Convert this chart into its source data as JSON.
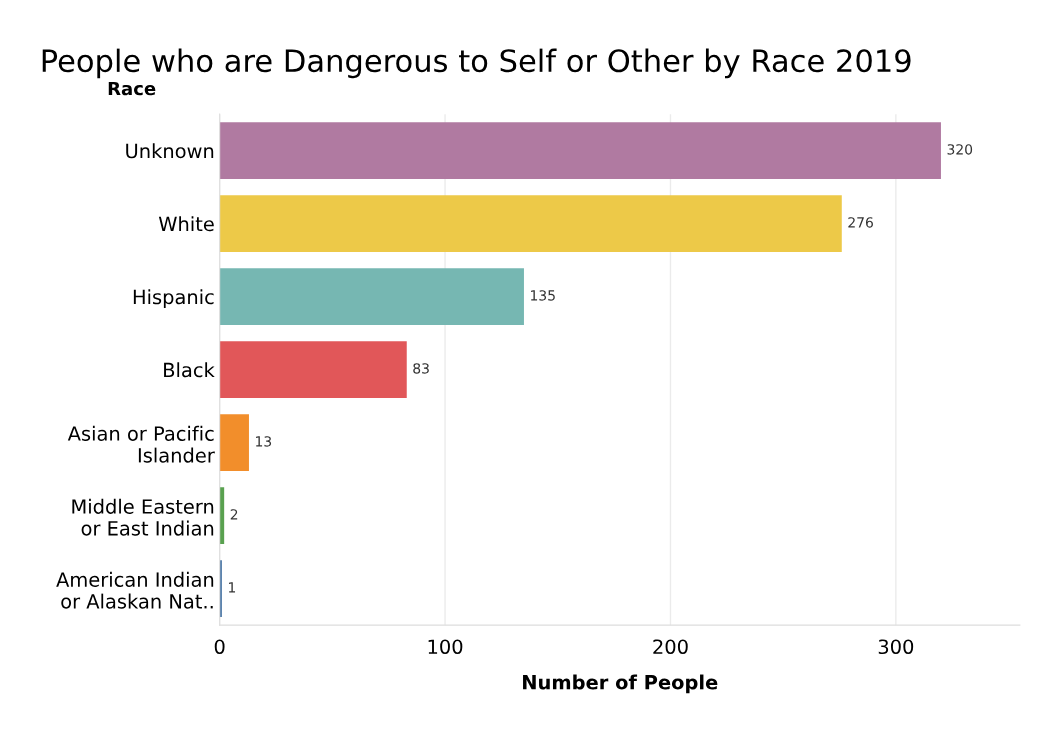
{
  "chart_data": {
    "type": "bar",
    "orientation": "horizontal",
    "title": "People who are Dangerous to Self or Other by Race 2019",
    "xlabel": "Number of People",
    "ylabel": "Race",
    "categories": [
      "Unknown",
      "White",
      "Hispanic",
      "Black",
      "Asian or Pacific\nIslander",
      "Middle Eastern\nor East Indian",
      "American Indian\nor Alaskan Nat.."
    ],
    "values": [
      320,
      276,
      135,
      83,
      13,
      2,
      1
    ],
    "colors": [
      "#b07aa1",
      "#edc948",
      "#76b7b2",
      "#e15759",
      "#f28e2b",
      "#59a14f",
      "#4e79a7"
    ],
    "xlim": [
      0,
      355
    ],
    "xticks": [
      0,
      100,
      200,
      300
    ],
    "grid": "x",
    "data_labels": true
  }
}
